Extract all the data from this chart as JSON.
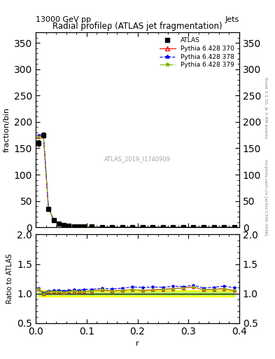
{
  "title": "Radial profileρ (ATLAS jet fragmentation)",
  "top_left_label": "13000 GeV pp",
  "top_right_label": "Jets",
  "right_label_top": "Rivet 3.1.10, ≥ 3.4M events",
  "right_label_bottom": "mcplots.cern.ch [arXiv:1306.3436]",
  "watermark": "ATLAS_2019_I1740909",
  "ylabel_main": "fraction/bin",
  "ylabel_ratio": "Ratio to ATLAS",
  "xlabel": "r",
  "xlim": [
    0.0,
    0.4
  ],
  "ylim_main": [
    0,
    370
  ],
  "ylim_ratio": [
    0.5,
    2.0
  ],
  "yticks_main": [
    0,
    50,
    100,
    150,
    200,
    250,
    300,
    350
  ],
  "yticks_ratio": [
    0.5,
    1.0,
    1.5,
    2.0
  ],
  "r_values": [
    0.005,
    0.015,
    0.025,
    0.035,
    0.045,
    0.055,
    0.065,
    0.075,
    0.085,
    0.095,
    0.11,
    0.13,
    0.15,
    0.17,
    0.19,
    0.21,
    0.23,
    0.25,
    0.27,
    0.29,
    0.31,
    0.33,
    0.35,
    0.37,
    0.39
  ],
  "atlas_values": [
    160,
    175,
    35,
    14,
    7,
    4.5,
    3,
    2.2,
    1.8,
    1.4,
    1.1,
    0.8,
    0.65,
    0.55,
    0.45,
    0.38,
    0.32,
    0.28,
    0.24,
    0.21,
    0.18,
    0.16,
    0.14,
    0.12,
    0.1
  ],
  "atlas_errors": [
    5,
    5,
    1.5,
    0.7,
    0.4,
    0.3,
    0.2,
    0.15,
    0.12,
    0.1,
    0.08,
    0.06,
    0.05,
    0.04,
    0.035,
    0.03,
    0.025,
    0.02,
    0.018,
    0.015,
    0.013,
    0.012,
    0.01,
    0.009,
    0.008
  ],
  "py370_values": [
    172,
    175,
    36,
    14.5,
    7.2,
    4.6,
    3.1,
    2.3,
    1.85,
    1.45,
    1.15,
    0.85,
    0.68,
    0.58,
    0.48,
    0.4,
    0.34,
    0.3,
    0.26,
    0.23,
    0.2,
    0.17,
    0.15,
    0.13,
    0.105
  ],
  "py378_values": [
    175,
    177,
    36.5,
    14.8,
    7.4,
    4.7,
    3.15,
    2.35,
    1.9,
    1.5,
    1.18,
    0.87,
    0.7,
    0.6,
    0.5,
    0.42,
    0.355,
    0.31,
    0.27,
    0.235,
    0.205,
    0.175,
    0.155,
    0.135,
    0.11
  ],
  "py379_values": [
    172,
    175,
    36,
    14.5,
    7.2,
    4.6,
    3.1,
    2.3,
    1.85,
    1.45,
    1.15,
    0.85,
    0.68,
    0.58,
    0.48,
    0.4,
    0.34,
    0.3,
    0.26,
    0.23,
    0.2,
    0.17,
    0.15,
    0.13,
    0.105
  ],
  "atlas_band_lo": [
    0.97,
    0.97,
    0.97,
    0.97,
    0.97,
    0.97,
    0.97,
    0.97,
    0.97,
    0.97,
    0.97,
    0.97,
    0.97,
    0.97,
    0.97,
    0.97,
    0.97,
    0.97,
    0.97,
    0.97,
    0.97,
    0.97,
    0.97,
    0.97,
    0.97
  ],
  "atlas_band_hi": [
    1.03,
    1.03,
    1.03,
    1.03,
    1.03,
    1.03,
    1.03,
    1.03,
    1.03,
    1.03,
    1.03,
    1.03,
    1.03,
    1.03,
    1.03,
    1.03,
    1.03,
    1.03,
    1.03,
    1.03,
    1.03,
    1.03,
    1.03,
    1.03,
    1.03
  ],
  "color_atlas": "#000000",
  "color_py370": "#ff0000",
  "color_py378": "#0000ff",
  "color_py379": "#80b000",
  "color_band_yellow": "#ffff00",
  "color_band_green": "#90ee90",
  "legend_entries": [
    "ATLAS",
    "Pythia 6.428 370",
    "Pythia 6.428 378",
    "Pythia 6.428 379"
  ],
  "bg_color": "#ffffff"
}
